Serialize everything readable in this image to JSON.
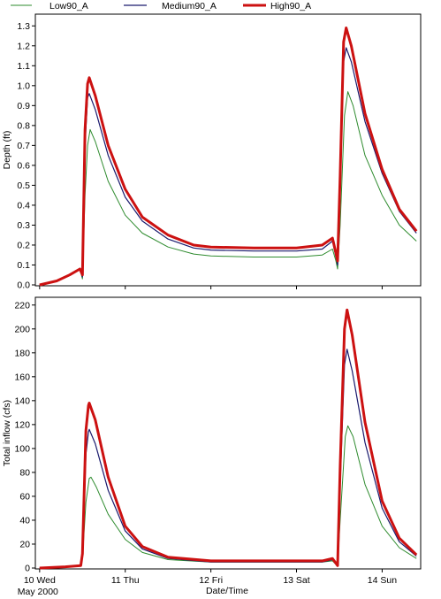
{
  "legend": [
    {
      "name": "Low90_A",
      "color": "#2e8b2e",
      "width": 1
    },
    {
      "name": "Medium90_A",
      "color": "#1a1a6e",
      "width": 1.2
    },
    {
      "name": "High90_A",
      "color": "#cc1111",
      "width": 3
    }
  ],
  "xlabel": "Date/Time",
  "xticks": [
    {
      "x": 0,
      "label": "10 Wed",
      "sublabel": "May 2000"
    },
    {
      "x": 1,
      "label": "11 Thu"
    },
    {
      "x": 2,
      "label": "12 Fri"
    },
    {
      "x": 3,
      "label": "13 Sat"
    },
    {
      "x": 4,
      "label": "14 Sun"
    }
  ],
  "chart_data": [
    {
      "type": "line",
      "ylabel": "Depth (ft)",
      "ylim": [
        0,
        1.35
      ],
      "yticks": [
        0.0,
        0.1,
        0.2,
        0.3,
        0.4,
        0.5,
        0.6,
        0.7,
        0.8,
        0.9,
        1.0,
        1.1,
        1.2,
        1.3
      ],
      "xlim": [
        -0.05,
        4.45
      ],
      "grid": false,
      "series": [
        {
          "name": "Low90_A",
          "points": [
            [
              0.0,
              0.0
            ],
            [
              0.2,
              0.02
            ],
            [
              0.35,
              0.05
            ],
            [
              0.47,
              0.08
            ],
            [
              0.5,
              0.03
            ],
            [
              0.53,
              0.45
            ],
            [
              0.56,
              0.7
            ],
            [
              0.59,
              0.78
            ],
            [
              0.65,
              0.72
            ],
            [
              0.8,
              0.52
            ],
            [
              1.0,
              0.35
            ],
            [
              1.2,
              0.26
            ],
            [
              1.5,
              0.19
            ],
            [
              1.8,
              0.155
            ],
            [
              2.0,
              0.145
            ],
            [
              2.5,
              0.14
            ],
            [
              3.0,
              0.14
            ],
            [
              3.3,
              0.15
            ],
            [
              3.42,
              0.18
            ],
            [
              3.46,
              0.12
            ],
            [
              3.48,
              0.08
            ],
            [
              3.51,
              0.3
            ],
            [
              3.56,
              0.85
            ],
            [
              3.6,
              0.97
            ],
            [
              3.66,
              0.9
            ],
            [
              3.8,
              0.65
            ],
            [
              4.0,
              0.45
            ],
            [
              4.2,
              0.3
            ],
            [
              4.4,
              0.22
            ]
          ]
        },
        {
          "name": "Medium90_A",
          "points": [
            [
              0.0,
              0.0
            ],
            [
              0.2,
              0.02
            ],
            [
              0.35,
              0.05
            ],
            [
              0.47,
              0.08
            ],
            [
              0.5,
              0.04
            ],
            [
              0.53,
              0.7
            ],
            [
              0.56,
              0.94
            ],
            [
              0.58,
              0.96
            ],
            [
              0.65,
              0.88
            ],
            [
              0.8,
              0.65
            ],
            [
              1.0,
              0.44
            ],
            [
              1.2,
              0.32
            ],
            [
              1.5,
              0.23
            ],
            [
              1.8,
              0.185
            ],
            [
              2.0,
              0.175
            ],
            [
              2.5,
              0.17
            ],
            [
              3.0,
              0.17
            ],
            [
              3.3,
              0.18
            ],
            [
              3.42,
              0.22
            ],
            [
              3.46,
              0.14
            ],
            [
              3.48,
              0.1
            ],
            [
              3.51,
              0.5
            ],
            [
              3.55,
              1.12
            ],
            [
              3.58,
              1.19
            ],
            [
              3.64,
              1.12
            ],
            [
              3.8,
              0.82
            ],
            [
              4.0,
              0.56
            ],
            [
              4.2,
              0.37
            ],
            [
              4.4,
              0.26
            ]
          ]
        },
        {
          "name": "High90_A",
          "points": [
            [
              0.0,
              0.0
            ],
            [
              0.2,
              0.02
            ],
            [
              0.35,
              0.05
            ],
            [
              0.47,
              0.08
            ],
            [
              0.5,
              0.05
            ],
            [
              0.53,
              0.78
            ],
            [
              0.56,
              1.01
            ],
            [
              0.58,
              1.04
            ],
            [
              0.65,
              0.95
            ],
            [
              0.8,
              0.7
            ],
            [
              1.0,
              0.48
            ],
            [
              1.2,
              0.34
            ],
            [
              1.5,
              0.25
            ],
            [
              1.8,
              0.2
            ],
            [
              2.0,
              0.19
            ],
            [
              2.5,
              0.185
            ],
            [
              3.0,
              0.185
            ],
            [
              3.3,
              0.2
            ],
            [
              3.42,
              0.235
            ],
            [
              3.46,
              0.16
            ],
            [
              3.48,
              0.12
            ],
            [
              3.51,
              0.55
            ],
            [
              3.55,
              1.22
            ],
            [
              3.58,
              1.29
            ],
            [
              3.64,
              1.2
            ],
            [
              3.8,
              0.86
            ],
            [
              4.0,
              0.58
            ],
            [
              4.2,
              0.38
            ],
            [
              4.4,
              0.27
            ]
          ]
        }
      ]
    },
    {
      "type": "line",
      "ylabel": "Total inflow (cfs)",
      "ylim": [
        0,
        225
      ],
      "yticks": [
        0,
        20,
        40,
        60,
        80,
        100,
        120,
        140,
        160,
        180,
        200,
        220
      ],
      "xlim": [
        -0.05,
        4.45
      ],
      "grid": false,
      "series": [
        {
          "name": "Low90_A",
          "points": [
            [
              0.0,
              0
            ],
            [
              0.3,
              1
            ],
            [
              0.48,
              2
            ],
            [
              0.5,
              8
            ],
            [
              0.54,
              55
            ],
            [
              0.58,
              75
            ],
            [
              0.6,
              76
            ],
            [
              0.66,
              68
            ],
            [
              0.8,
              45
            ],
            [
              1.0,
              24
            ],
            [
              1.2,
              13
            ],
            [
              1.5,
              7
            ],
            [
              2.0,
              5
            ],
            [
              2.5,
              5
            ],
            [
              3.0,
              5
            ],
            [
              3.3,
              5
            ],
            [
              3.42,
              6
            ],
            [
              3.46,
              3
            ],
            [
              3.48,
              2
            ],
            [
              3.51,
              40
            ],
            [
              3.57,
              110
            ],
            [
              3.6,
              119
            ],
            [
              3.66,
              110
            ],
            [
              3.8,
              70
            ],
            [
              4.0,
              35
            ],
            [
              4.2,
              17
            ],
            [
              4.4,
              8
            ]
          ]
        },
        {
          "name": "Medium90_A",
          "points": [
            [
              0.0,
              0
            ],
            [
              0.3,
              1
            ],
            [
              0.48,
              2
            ],
            [
              0.5,
              10
            ],
            [
              0.54,
              95
            ],
            [
              0.57,
              114
            ],
            [
              0.58,
              116
            ],
            [
              0.65,
              104
            ],
            [
              0.8,
              65
            ],
            [
              1.0,
              31
            ],
            [
              1.2,
              16
            ],
            [
              1.5,
              8
            ],
            [
              2.0,
              5
            ],
            [
              2.5,
              5
            ],
            [
              3.0,
              5
            ],
            [
              3.3,
              5
            ],
            [
              3.42,
              7
            ],
            [
              3.46,
              4
            ],
            [
              3.48,
              2
            ],
            [
              3.51,
              70
            ],
            [
              3.56,
              170
            ],
            [
              3.59,
              183
            ],
            [
              3.65,
              165
            ],
            [
              3.8,
              105
            ],
            [
              4.0,
              50
            ],
            [
              4.2,
              22
            ],
            [
              4.4,
              10
            ]
          ]
        },
        {
          "name": "High90_A",
          "points": [
            [
              0.0,
              0
            ],
            [
              0.3,
              1
            ],
            [
              0.48,
              2
            ],
            [
              0.5,
              12
            ],
            [
              0.54,
              115
            ],
            [
              0.57,
              136
            ],
            [
              0.58,
              138
            ],
            [
              0.65,
              124
            ],
            [
              0.8,
              76
            ],
            [
              1.0,
              35
            ],
            [
              1.2,
              18
            ],
            [
              1.5,
              9
            ],
            [
              2.0,
              6
            ],
            [
              2.5,
              6
            ],
            [
              3.0,
              6
            ],
            [
              3.3,
              6
            ],
            [
              3.42,
              8
            ],
            [
              3.46,
              4
            ],
            [
              3.48,
              2
            ],
            [
              3.51,
              85
            ],
            [
              3.56,
              200
            ],
            [
              3.59,
              216
            ],
            [
              3.65,
              195
            ],
            [
              3.8,
              122
            ],
            [
              4.0,
              56
            ],
            [
              4.2,
              25
            ],
            [
              4.4,
              11
            ]
          ]
        }
      ]
    }
  ]
}
